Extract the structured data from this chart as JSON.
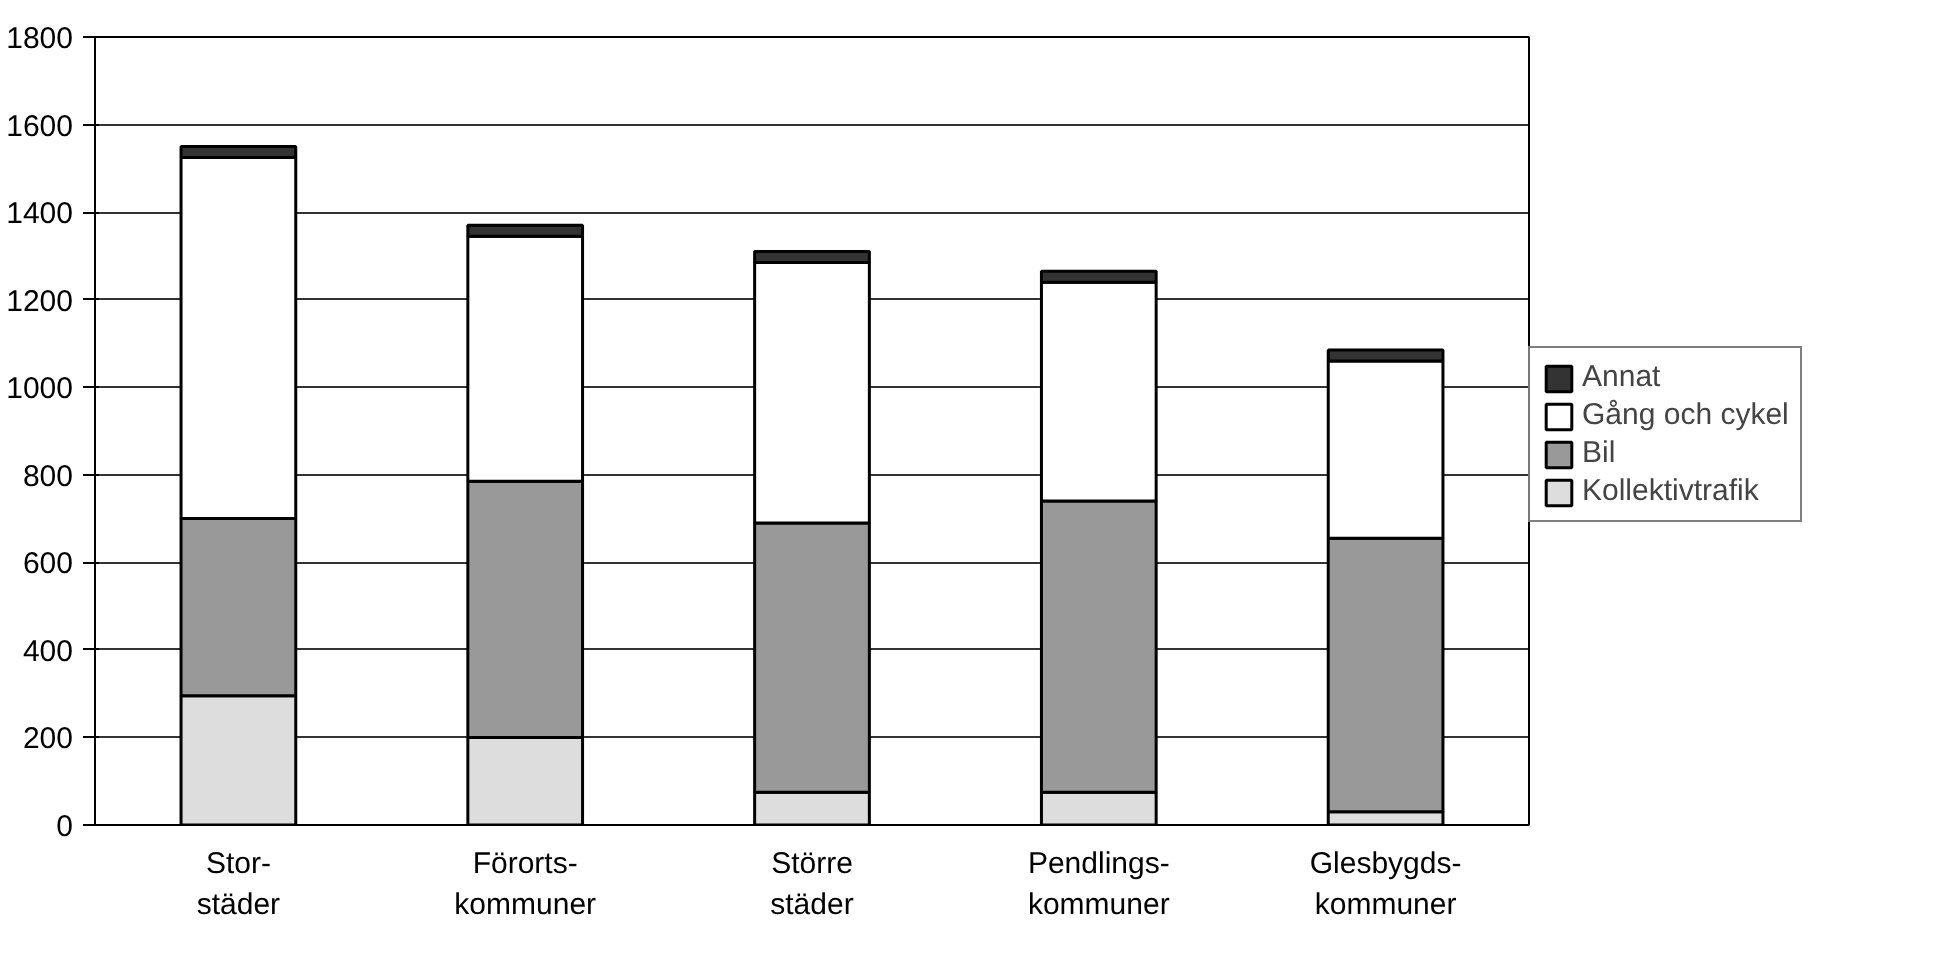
{
  "chart_data": {
    "type": "bar",
    "stacked": true,
    "categories": [
      "Stor-\nstäder",
      "Förorts-\nkommuner",
      "Större\nstäder",
      "Pendlings-\nkommuner",
      "Glesbygds-\nkommuner"
    ],
    "series": [
      {
        "name": "Kollektivtrafik",
        "color": "#dddddd",
        "values": [
          295,
          200,
          75,
          75,
          30
        ]
      },
      {
        "name": "Bil",
        "color": "#999999",
        "values": [
          405,
          585,
          615,
          665,
          625
        ]
      },
      {
        "name": "Gång och cykel",
        "color": "#ffffff",
        "values": [
          825,
          560,
          595,
          500,
          405
        ]
      },
      {
        "name": "Annat",
        "color": "#333333",
        "values": [
          25,
          25,
          25,
          25,
          25
        ]
      }
    ],
    "ylim": [
      0,
      1800
    ],
    "yticks": [
      0,
      200,
      400,
      600,
      800,
      1000,
      1200,
      1400,
      1600,
      1800
    ],
    "grid": "y",
    "legend": "right"
  }
}
